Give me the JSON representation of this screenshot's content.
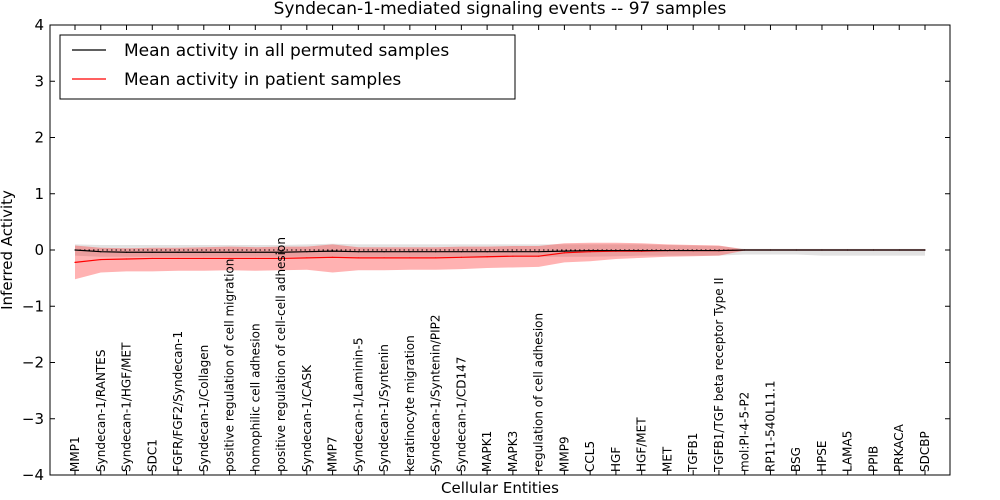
{
  "chart_data": {
    "type": "line",
    "title": "Syndecan-1-mediated signaling events -- 97 samples",
    "xlabel": "Cellular Entities",
    "ylabel": "Inferred Activity",
    "ylim": [
      -4,
      4
    ],
    "yticks": [
      "4",
      "3",
      "2",
      "1",
      "0",
      "−1",
      "−2",
      "−3",
      "−4"
    ],
    "ytick_values": [
      4,
      3,
      2,
      1,
      0,
      -1,
      -2,
      -3,
      -4
    ],
    "legend": {
      "placement": "top-left",
      "entries": [
        {
          "label": "Mean activity in all permuted samples",
          "color": "#000000"
        },
        {
          "label": "Mean activity in patient samples",
          "color": "#ff0000"
        }
      ]
    },
    "categories": [
      "MMP1",
      "Syndecan-1/RANTES",
      "Syndecan-1/HGF/MET",
      "SDC1",
      "FGFR/FGF2/Syndecan-1",
      "Syndecan-1/Collagen",
      "positive regulation of cell migration",
      "homophilic cell adhesion",
      "positive regulation of cell-cell adhesion",
      "Syndecan-1/CASK",
      "MMP7",
      "Syndecan-1/Laminin-5",
      "Syndecan-1/Syntenin",
      "keratinocyte migration",
      "Syndecan-1/Syntenin/PIP2",
      "Syndecan-1/CD147",
      "MAPK1",
      "MAPK3",
      "regulation of cell adhesion",
      "MMP9",
      "CCL5",
      "HGF",
      "HGF/MET",
      "MET",
      "TGFB1",
      "TGFB1/TGF beta receptor Type II",
      "mol:PI-4-5-P2",
      "RP11-540L11.1",
      "BSG",
      "HPSE",
      "LAMA5",
      "PPIB",
      "PRKACA",
      "SDCBP"
    ],
    "series": [
      {
        "name": "Mean activity in all permuted samples",
        "color": "#000000",
        "values": [
          0.0,
          -0.03,
          -0.04,
          -0.04,
          -0.04,
          -0.04,
          -0.04,
          -0.04,
          -0.04,
          -0.03,
          -0.02,
          -0.03,
          -0.03,
          -0.03,
          -0.03,
          -0.03,
          -0.03,
          -0.03,
          -0.03,
          -0.02,
          -0.01,
          -0.01,
          -0.01,
          -0.01,
          -0.01,
          -0.01,
          0.0,
          0.0,
          0.0,
          0.0,
          0.0,
          0.0,
          0.0,
          0.0
        ],
        "band_upper": [
          0.1,
          0.09,
          0.09,
          0.09,
          0.09,
          0.09,
          0.09,
          0.09,
          0.09,
          0.1,
          0.11,
          0.1,
          0.1,
          0.1,
          0.1,
          0.1,
          0.1,
          0.1,
          0.1,
          0.1,
          0.1,
          0.1,
          0.1,
          0.09,
          0.08,
          0.07,
          0.02,
          0.02,
          0.02,
          0.02,
          0.02,
          0.02,
          0.02,
          0.02
        ],
        "band_lower": [
          -0.1,
          -0.12,
          -0.12,
          -0.12,
          -0.12,
          -0.12,
          -0.12,
          -0.12,
          -0.12,
          -0.12,
          -0.12,
          -0.12,
          -0.12,
          -0.12,
          -0.12,
          -0.12,
          -0.12,
          -0.12,
          -0.12,
          -0.12,
          -0.12,
          -0.11,
          -0.1,
          -0.1,
          -0.1,
          -0.1,
          -0.08,
          -0.08,
          -0.08,
          -0.1,
          -0.1,
          -0.1,
          -0.1,
          -0.1
        ]
      },
      {
        "name": "Mean activity in patient samples",
        "color": "#ff0000",
        "values": [
          -0.22,
          -0.17,
          -0.16,
          -0.15,
          -0.15,
          -0.15,
          -0.15,
          -0.15,
          -0.15,
          -0.14,
          -0.13,
          -0.14,
          -0.14,
          -0.14,
          -0.14,
          -0.13,
          -0.12,
          -0.11,
          -0.11,
          -0.05,
          -0.03,
          -0.02,
          -0.02,
          -0.01,
          -0.01,
          -0.01,
          0.0,
          0.0,
          0.0,
          0.0,
          0.0,
          0.0,
          0.0,
          0.0
        ],
        "band_upper": [
          0.08,
          0.04,
          0.03,
          0.04,
          0.04,
          0.05,
          0.06,
          0.05,
          0.06,
          0.06,
          0.1,
          0.05,
          0.05,
          0.05,
          0.05,
          0.06,
          0.06,
          0.07,
          0.07,
          0.12,
          0.13,
          0.13,
          0.12,
          0.1,
          0.09,
          0.08,
          0.01,
          0.01,
          0.01,
          0.01,
          0.01,
          0.01,
          0.01,
          0.01
        ],
        "band_lower": [
          -0.52,
          -0.4,
          -0.38,
          -0.38,
          -0.37,
          -0.37,
          -0.36,
          -0.37,
          -0.36,
          -0.35,
          -0.4,
          -0.36,
          -0.36,
          -0.35,
          -0.35,
          -0.34,
          -0.32,
          -0.31,
          -0.3,
          -0.22,
          -0.2,
          -0.16,
          -0.14,
          -0.12,
          -0.11,
          -0.1,
          -0.01,
          -0.01,
          -0.01,
          -0.01,
          -0.01,
          -0.01,
          -0.01,
          -0.01
        ]
      }
    ],
    "reference_line": {
      "y": 0,
      "style": "dotted"
    }
  }
}
